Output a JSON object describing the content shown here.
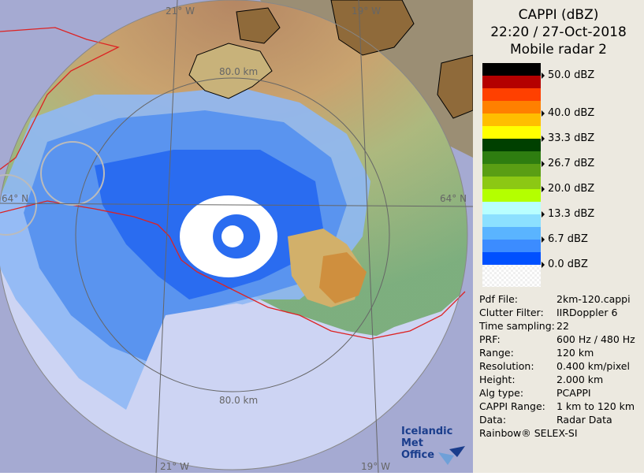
{
  "panel": {
    "title_line1": "CAPPI (dBZ)",
    "title_line2": "22:20 / 27-Oct-2018",
    "title_line3": "Mobile radar 2",
    "legend": [
      {
        "color": "#000000",
        "label": "50.0 dBZ"
      },
      {
        "color": "#b40000",
        "label": ""
      },
      {
        "color": "#ff4000",
        "label": ""
      },
      {
        "color": "#ff8000",
        "label": "40.0 dBZ"
      },
      {
        "color": "#ffbe00",
        "label": ""
      },
      {
        "color": "#ffff00",
        "label": "33.3 dBZ"
      },
      {
        "color": "#004000",
        "label": ""
      },
      {
        "color": "#2e7d10",
        "label": "26.7 dBZ"
      },
      {
        "color": "#5a9e14",
        "label": ""
      },
      {
        "color": "#8cc814",
        "label": "20.0 dBZ"
      },
      {
        "color": "#b4ff00",
        "label": ""
      },
      {
        "color": "#b8ffff",
        "label": "13.3 dBZ"
      },
      {
        "color": "#8ce0ff",
        "label": ""
      },
      {
        "color": "#5ab4ff",
        "label": "6.7 dBZ"
      },
      {
        "color": "#3c8cff",
        "label": ""
      },
      {
        "color": "#0050ff",
        "label": "0.0 dBZ"
      },
      {
        "color": "#ffffff",
        "label": ""
      }
    ],
    "info": [
      {
        "key": "Pdf File:",
        "value": "2km-120.cappi"
      },
      {
        "key": "Clutter Filter:",
        "value": "IIRDoppler 6"
      },
      {
        "key": "Time sampling:",
        "value": "22"
      },
      {
        "key": "PRF:",
        "value": "600 Hz / 480 Hz"
      },
      {
        "key": "Range:",
        "value": "120 km"
      },
      {
        "key": "Resolution:",
        "value": "0.400 km/pixel"
      },
      {
        "key": "Height:",
        "value": "2.000 km"
      },
      {
        "key": "Alg type:",
        "value": "PCAPPI"
      },
      {
        "key": "CAPPI Range:",
        "value": "1 km to 120 km"
      },
      {
        "key": "Data:",
        "value": "Radar Data"
      }
    ],
    "footer": "Rainbow® SELEX-SI"
  },
  "map": {
    "lon_labels": [
      "21° W",
      "19° W",
      "21° W",
      "19° W"
    ],
    "lat_labels": [
      "64° N",
      "64° N"
    ],
    "range_labels": [
      "80.0 km",
      "80.0 km"
    ],
    "credit_line1": "Icelandic Met",
    "credit_line2": "Office"
  }
}
